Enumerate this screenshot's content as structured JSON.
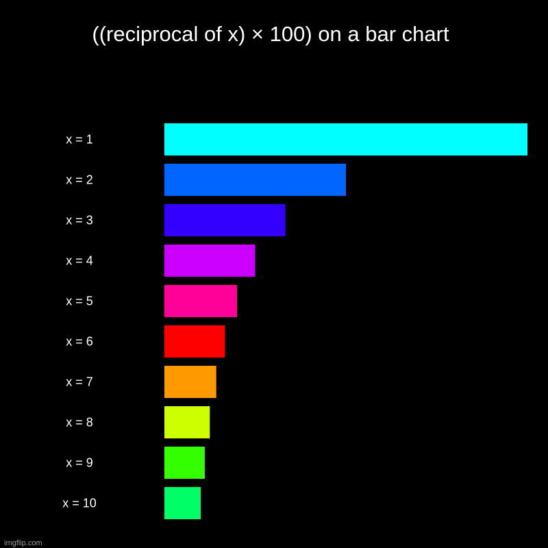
{
  "chart_data": {
    "type": "bar",
    "orientation": "horizontal",
    "title": "((reciprocal of x) × 100) on a bar chart",
    "categories": [
      "x = 1",
      "x = 2",
      "x = 3",
      "x = 4",
      "x = 5",
      "x = 6",
      "x = 7",
      "x = 8",
      "x = 9",
      "x = 10"
    ],
    "values": [
      100,
      50,
      33.33,
      25,
      20,
      16.67,
      14.29,
      12.5,
      11.11,
      10
    ],
    "colors": [
      "#00ffff",
      "#0066ff",
      "#3300ff",
      "#cc00ff",
      "#ff0099",
      "#ff0000",
      "#ff9900",
      "#ccff00",
      "#33ff00",
      "#00ff66"
    ],
    "xlim": [
      0,
      100
    ],
    "grid": false,
    "axis_ticks_shown": false
  },
  "watermark": {
    "text": "imgflip.com"
  },
  "theme": {
    "background": "#000000",
    "text": "#ffffff"
  }
}
